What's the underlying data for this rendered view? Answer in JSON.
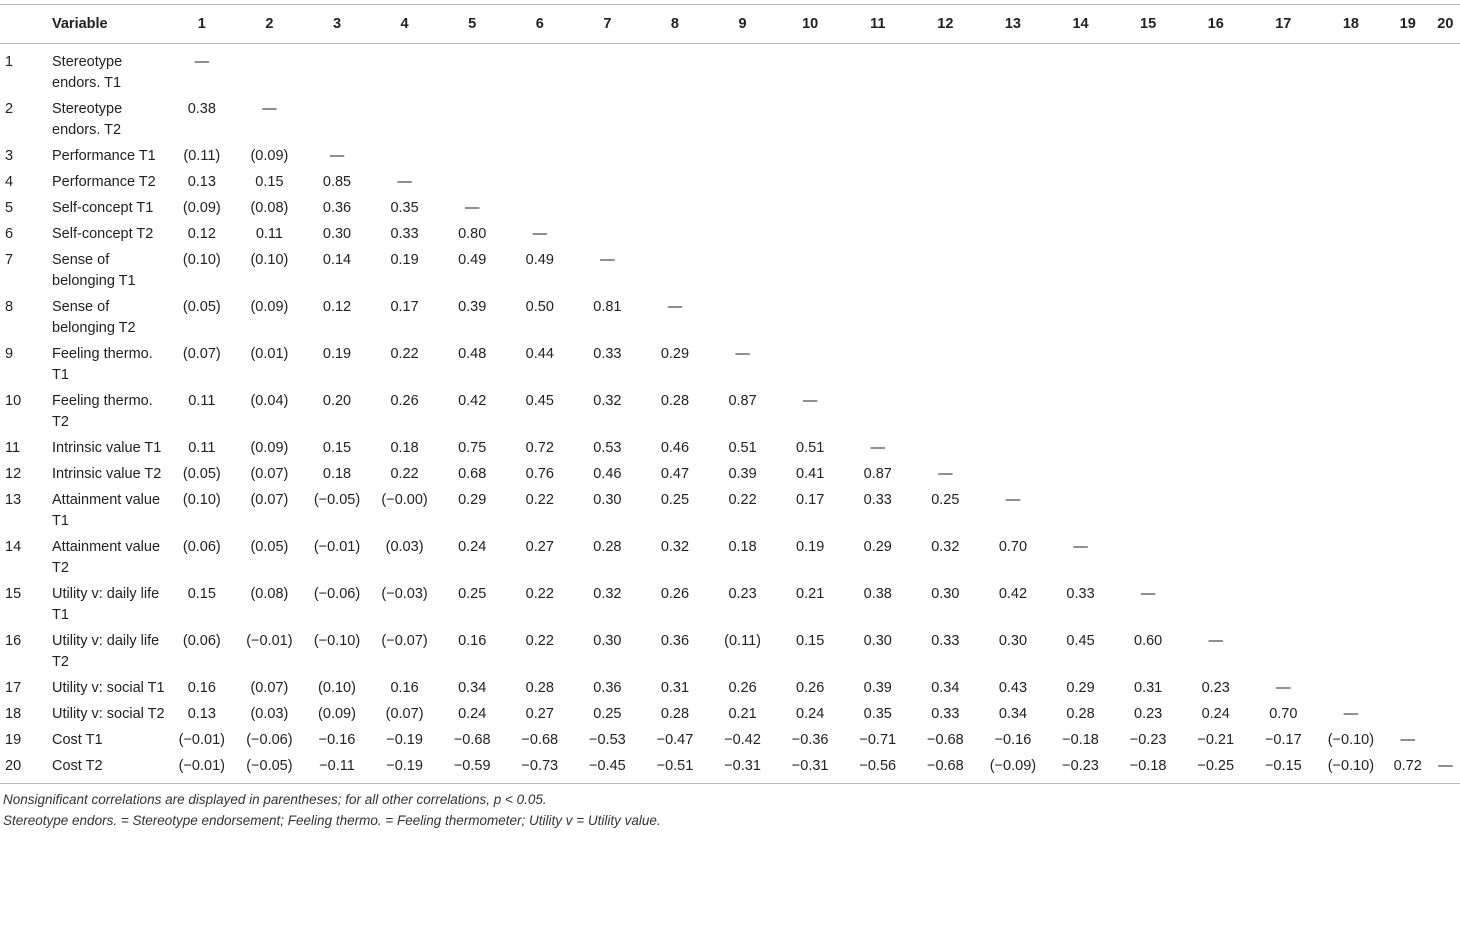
{
  "table": {
    "header": [
      "Variable",
      "1",
      "2",
      "3",
      "4",
      "5",
      "6",
      "7",
      "8",
      "9",
      "10",
      "11",
      "12",
      "13",
      "14",
      "15",
      "16",
      "17",
      "18",
      "19",
      "20"
    ],
    "rows": [
      [
        "1",
        "Stereotype endors. T1",
        "—"
      ],
      [
        "2",
        "Stereotype endors. T2",
        "0.38",
        "—"
      ],
      [
        "3",
        "Performance T1",
        "(0.11)",
        "(0.09)",
        "—"
      ],
      [
        "4",
        "Performance T2",
        "0.13",
        "0.15",
        "0.85",
        "—"
      ],
      [
        "5",
        "Self-concept T1",
        "(0.09)",
        "(0.08)",
        "0.36",
        "0.35",
        "—"
      ],
      [
        "6",
        "Self-concept T2",
        "0.12",
        "0.11",
        "0.30",
        "0.33",
        "0.80",
        "—"
      ],
      [
        "7",
        "Sense of belonging T1",
        "(0.10)",
        "(0.10)",
        "0.14",
        "0.19",
        "0.49",
        "0.49",
        "—"
      ],
      [
        "8",
        "Sense of belonging T2",
        "(0.05)",
        "(0.09)",
        "0.12",
        "0.17",
        "0.39",
        "0.50",
        "0.81",
        "—"
      ],
      [
        "9",
        "Feeling thermo. T1",
        "(0.07)",
        "(0.01)",
        "0.19",
        "0.22",
        "0.48",
        "0.44",
        "0.33",
        "0.29",
        "—"
      ],
      [
        "10",
        "Feeling thermo. T2",
        "0.11",
        "(0.04)",
        "0.20",
        "0.26",
        "0.42",
        "0.45",
        "0.32",
        "0.28",
        "0.87",
        "—"
      ],
      [
        "11",
        "Intrinsic value T1",
        "0.11",
        "(0.09)",
        "0.15",
        "0.18",
        "0.75",
        "0.72",
        "0.53",
        "0.46",
        "0.51",
        "0.51",
        "—"
      ],
      [
        "12",
        "Intrinsic value T2",
        "(0.05)",
        "(0.07)",
        "0.18",
        "0.22",
        "0.68",
        "0.76",
        "0.46",
        "0.47",
        "0.39",
        "0.41",
        "0.87",
        "—"
      ],
      [
        "13",
        "Attainment value T1",
        "(0.10)",
        "(0.07)",
        "(−0.05)",
        "(−0.00)",
        "0.29",
        "0.22",
        "0.30",
        "0.25",
        "0.22",
        "0.17",
        "0.33",
        "0.25",
        "—"
      ],
      [
        "14",
        "Attainment value T2",
        "(0.06)",
        "(0.05)",
        "(−0.01)",
        "(0.03)",
        "0.24",
        "0.27",
        "0.28",
        "0.32",
        "0.18",
        "0.19",
        "0.29",
        "0.32",
        "0.70",
        "—"
      ],
      [
        "15",
        "Utility v: daily life T1",
        "0.15",
        "(0.08)",
        "(−0.06)",
        "(−0.03)",
        "0.25",
        "0.22",
        "0.32",
        "0.26",
        "0.23",
        "0.21",
        "0.38",
        "0.30",
        "0.42",
        "0.33",
        "—"
      ],
      [
        "16",
        "Utility v: daily life T2",
        "(0.06)",
        "(−0.01)",
        "(−0.10)",
        "(−0.07)",
        "0.16",
        "0.22",
        "0.30",
        "0.36",
        "(0.11)",
        "0.15",
        "0.30",
        "0.33",
        "0.30",
        "0.45",
        "0.60",
        "—"
      ],
      [
        "17",
        "Utility v: social T1",
        "0.16",
        "(0.07)",
        "(0.10)",
        "0.16",
        "0.34",
        "0.28",
        "0.36",
        "0.31",
        "0.26",
        "0.26",
        "0.39",
        "0.34",
        "0.43",
        "0.29",
        "0.31",
        "0.23",
        "—"
      ],
      [
        "18",
        "Utility v: social T2",
        "0.13",
        "(0.03)",
        "(0.09)",
        "(0.07)",
        "0.24",
        "0.27",
        "0.25",
        "0.28",
        "0.21",
        "0.24",
        "0.35",
        "0.33",
        "0.34",
        "0.28",
        "0.23",
        "0.24",
        "0.70",
        "—"
      ],
      [
        "19",
        "Cost T1",
        "(−0.01)",
        "(−0.06)",
        "−0.16",
        "−0.19",
        "−0.68",
        "−0.68",
        "−0.53",
        "−0.47",
        "−0.42",
        "−0.36",
        "−0.71",
        "−0.68",
        "−0.16",
        "−0.18",
        "−0.23",
        "−0.21",
        "−0.17",
        "(−0.10)",
        "—"
      ],
      [
        "20",
        "Cost T2",
        "(−0.01)",
        "(−0.05)",
        "−0.11",
        "−0.19",
        "−0.59",
        "−0.73",
        "−0.45",
        "−0.51",
        "−0.31",
        "−0.31",
        "−0.56",
        "−0.68",
        "(−0.09)",
        "−0.23",
        "−0.18",
        "−0.25",
        "−0.15",
        "(−0.10)",
        "0.72",
        "—"
      ]
    ]
  },
  "notes": [
    "Nonsignificant correlations are displayed in parentheses; for all other correlations, p < 0.05.",
    "Stereotype endors. = Stereotype endorsement; Feeling thermo. = Feeling thermometer; Utility v = Utility value."
  ]
}
